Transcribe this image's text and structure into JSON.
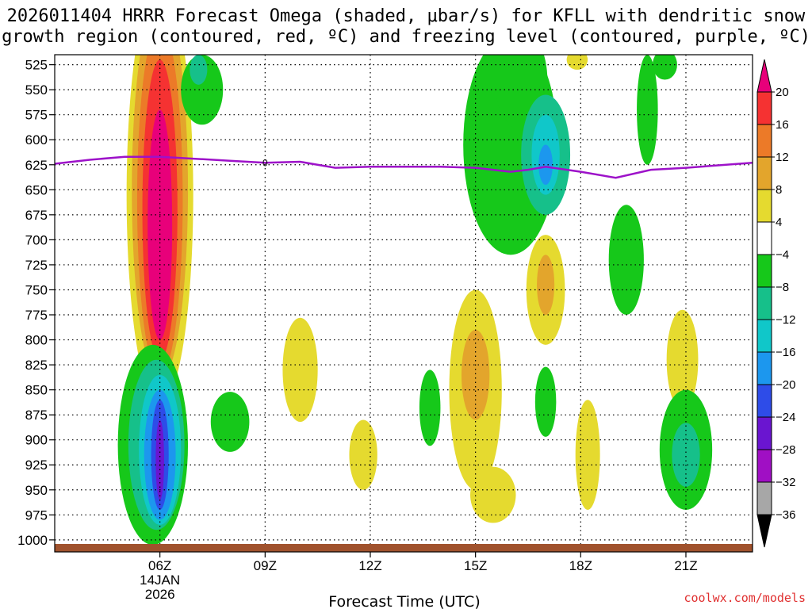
{
  "chart_data": {
    "type": "heatmap",
    "title_lines": [
      "2026011404 HRRR Forecast Omega (shaded, μbar/s) for KFLL with dendritic snow",
      "growth region (contoured, red, ºC) and freezing level (contoured, purple, ºC)"
    ],
    "xlabel": "Forecast Time (UTC)",
    "ylabel": "",
    "credit": "coolwx.com/models",
    "x_range_hours": [
      3.0,
      22.9
    ],
    "y_range_hpa": [
      515,
      1012
    ],
    "y_ticks": [
      "525",
      "550",
      "575",
      "600",
      "625",
      "650",
      "675",
      "700",
      "725",
      "750",
      "775",
      "800",
      "825",
      "850",
      "875",
      "900",
      "925",
      "950",
      "975",
      "1000"
    ],
    "x_ticks": [
      {
        "hour": 6,
        "label": "06Z",
        "sub1": "14JAN",
        "sub2": "2026"
      },
      {
        "hour": 9,
        "label": "09Z"
      },
      {
        "hour": 12,
        "label": "12Z"
      },
      {
        "hour": 15,
        "label": "15Z"
      },
      {
        "hour": 18,
        "label": "18Z"
      },
      {
        "hour": 21,
        "label": "21Z"
      }
    ],
    "colorbar": {
      "labels": [
        "20",
        "16",
        "12",
        "8",
        "4",
        "−4",
        "−8",
        "−12",
        "−16",
        "−20",
        "−24",
        "−28",
        "−32",
        "−36"
      ],
      "colors": [
        "#e8007a",
        "#f53232",
        "#ec7a28",
        "#e3a52c",
        "#e5da2f",
        "#ffffff",
        "#16c81a",
        "#16c08a",
        "#10c7c9",
        "#1c97ee",
        "#2e4ce8",
        "#6a15d0",
        "#a00fc4",
        "#a7a7a7",
        "#000000"
      ]
    },
    "omega_cells": [
      {
        "t": 6.0,
        "p": 655,
        "rt": 0.95,
        "rp": 210,
        "v": 4
      },
      {
        "t": 6.0,
        "p": 650,
        "rt": 0.8,
        "rp": 190,
        "v": 8
      },
      {
        "t": 6.0,
        "p": 660,
        "rt": 0.65,
        "rp": 175,
        "v": 12
      },
      {
        "t": 6.0,
        "p": 670,
        "rt": 0.5,
        "rp": 150,
        "v": 16
      },
      {
        "t": 6.0,
        "p": 685,
        "rt": 0.35,
        "rp": 115,
        "v": 20
      },
      {
        "t": 7.2,
        "p": 550,
        "rt": 0.6,
        "rp": 35,
        "v": -4
      },
      {
        "t": 7.1,
        "p": 530,
        "rt": 0.25,
        "rp": 15,
        "v": -8
      },
      {
        "t": 5.8,
        "p": 905,
        "rt": 1.0,
        "rp": 100,
        "v": -4
      },
      {
        "t": 5.9,
        "p": 905,
        "rt": 0.8,
        "rp": 85,
        "v": -8
      },
      {
        "t": 6.0,
        "p": 910,
        "rt": 0.6,
        "rp": 75,
        "v": -12
      },
      {
        "t": 6.0,
        "p": 915,
        "rt": 0.45,
        "rp": 65,
        "v": -16
      },
      {
        "t": 6.0,
        "p": 915,
        "rt": 0.25,
        "rp": 55,
        "v": -20
      },
      {
        "t": 6.0,
        "p": 920,
        "rt": 0.12,
        "rp": 40,
        "v": -24
      },
      {
        "t": 8.0,
        "p": 882,
        "rt": 0.55,
        "rp": 30,
        "v": -4
      },
      {
        "t": 10.0,
        "p": 830,
        "rt": 0.5,
        "rp": 52,
        "v": 4
      },
      {
        "t": 11.8,
        "p": 915,
        "rt": 0.4,
        "rp": 35,
        "v": 4
      },
      {
        "t": 13.7,
        "p": 868,
        "rt": 0.3,
        "rp": 38,
        "v": -4
      },
      {
        "t": 15.0,
        "p": 850,
        "rt": 0.75,
        "rp": 100,
        "v": 4
      },
      {
        "t": 15.0,
        "p": 835,
        "rt": 0.4,
        "rp": 45,
        "v": 8
      },
      {
        "t": 15.5,
        "p": 955,
        "rt": 0.65,
        "rp": 28,
        "v": 4
      },
      {
        "t": 16.0,
        "p": 605,
        "rt": 1.35,
        "rp": 110,
        "v": -4
      },
      {
        "t": 16.3,
        "p": 540,
        "rt": 0.75,
        "rp": 50,
        "v": -4
      },
      {
        "t": 17.0,
        "p": 615,
        "rt": 0.7,
        "rp": 60,
        "v": -8
      },
      {
        "t": 17.0,
        "p": 615,
        "rt": 0.4,
        "rp": 40,
        "v": -12
      },
      {
        "t": 17.0,
        "p": 625,
        "rt": 0.2,
        "rp": 20,
        "v": -16
      },
      {
        "t": 17.0,
        "p": 750,
        "rt": 0.55,
        "rp": 55,
        "v": 4
      },
      {
        "t": 17.0,
        "p": 745,
        "rt": 0.25,
        "rp": 30,
        "v": 8
      },
      {
        "t": 17.0,
        "p": 862,
        "rt": 0.3,
        "rp": 35,
        "v": -4
      },
      {
        "t": 18.2,
        "p": 915,
        "rt": 0.35,
        "rp": 55,
        "v": 4
      },
      {
        "t": 19.3,
        "p": 720,
        "rt": 0.5,
        "rp": 55,
        "v": -4
      },
      {
        "t": 19.9,
        "p": 570,
        "rt": 0.3,
        "rp": 55,
        "v": -4
      },
      {
        "t": 20.4,
        "p": 525,
        "rt": 0.35,
        "rp": 15,
        "v": -4
      },
      {
        "t": 20.9,
        "p": 820,
        "rt": 0.45,
        "rp": 50,
        "v": 4
      },
      {
        "t": 21.0,
        "p": 910,
        "rt": 0.75,
        "rp": 60,
        "v": -4
      },
      {
        "t": 21.0,
        "p": 915,
        "rt": 0.4,
        "rp": 32,
        "v": -8
      },
      {
        "t": 17.9,
        "p": 520,
        "rt": 0.3,
        "rp": 10,
        "v": 4
      }
    ],
    "freezing_level": {
      "label": "0",
      "hours": [
        3.0,
        4.0,
        5.0,
        6.0,
        7.0,
        8.0,
        9.0,
        10.0,
        11.0,
        12.0,
        13.0,
        14.0,
        15.0,
        16.0,
        16.5,
        17.0,
        18.0,
        19.0,
        20.0,
        21.0,
        22.9
      ],
      "hpa": [
        624,
        620,
        617,
        617,
        619,
        621,
        623,
        622,
        628,
        627,
        627,
        627,
        628,
        632,
        630,
        627,
        632,
        638,
        630,
        628,
        623
      ]
    }
  }
}
